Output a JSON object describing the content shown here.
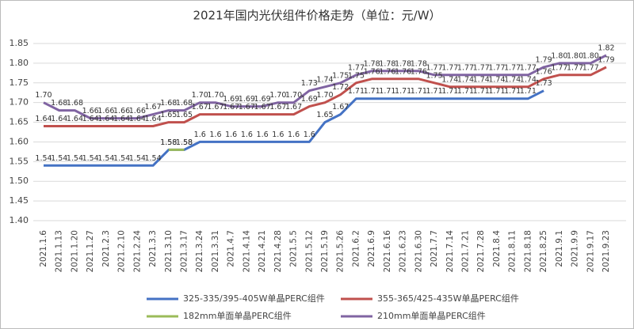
{
  "chart_data": {
    "type": "line",
    "title": "2021年国内光伏组件价格走势（单位：元/W）",
    "categories": [
      "2021.1.6",
      "2021.1.13",
      "2021.1.20",
      "2021.1.27",
      "2021.2.3",
      "2021.2.10",
      "2021.2.24",
      "2021.3.3",
      "2021.3.10",
      "2021.3.17",
      "2021.3.24",
      "2021.3.31",
      "2021.4.7",
      "2021.4.14",
      "2021.4.21",
      "2021.4.28",
      "2021.5.5",
      "2021.5.12",
      "2021.5.19",
      "2021.5.26",
      "2021.6.2",
      "2021.6.9",
      "2021.6.16",
      "2021.6.23",
      "2021.6.30",
      "2021.7.7",
      "2021.7.14",
      "2021.7.21",
      "2021.7.28",
      "2021.8.4",
      "2021.8.11",
      "2021.8.18",
      "2021.8.25",
      "2021.9.1",
      "2021.9.9",
      "2021.9.17",
      "2021.9.23"
    ],
    "series": [
      {
        "name": "325-335/395-405W单晶PERC组件",
        "color": "#4472c4",
        "values": [
          1.54,
          1.54,
          1.54,
          1.54,
          1.54,
          1.54,
          1.54,
          1.54,
          1.58,
          1.58,
          1.6,
          1.6,
          1.6,
          1.6,
          1.6,
          1.6,
          1.6,
          1.6,
          1.65,
          1.67,
          1.71,
          1.71,
          1.71,
          1.71,
          1.71,
          1.71,
          1.71,
          1.71,
          1.71,
          1.71,
          1.71,
          1.71,
          1.73,
          null,
          null,
          null,
          null
        ],
        "value_labels": [
          "1.54",
          "1.54",
          "1.54",
          "1.54",
          "1.54",
          "1.54",
          "1.54",
          "1.54",
          "1.58",
          "1.58",
          "1.6",
          "1.6",
          "1.6",
          "1.6",
          "1.6",
          "1.6",
          "1.6",
          "1.6",
          "1.65",
          "1.67",
          "1.71",
          "1.71",
          "1.71",
          "1.71",
          "1.71",
          "1.71",
          "1.71",
          "1.71",
          "1.71",
          "1.71",
          "1.71",
          "1.71",
          "1.73",
          null,
          null,
          null,
          null
        ]
      },
      {
        "name": "355-365/425-435W单晶PERC组件",
        "color": "#c0504d",
        "values": [
          1.64,
          1.64,
          1.64,
          1.64,
          1.64,
          1.64,
          1.64,
          1.64,
          1.65,
          1.65,
          1.67,
          1.67,
          1.67,
          1.67,
          1.67,
          1.67,
          1.67,
          1.69,
          1.7,
          1.72,
          1.75,
          1.76,
          1.76,
          1.76,
          1.76,
          1.75,
          1.74,
          1.74,
          1.74,
          1.74,
          1.74,
          1.74,
          1.76,
          1.77,
          1.77,
          1.77,
          1.79
        ],
        "value_labels": [
          "1.64",
          "1.64",
          "1.64",
          "1.64",
          "1.64",
          "1.64",
          "1.64",
          "1.64",
          "1.65",
          "1.65",
          "1.67",
          "1.67",
          "1.67",
          "1.67",
          "1.67",
          "1.67",
          "1.67",
          "1.69",
          "1.70",
          "1.72",
          "1.75",
          "1.76",
          "1.76",
          "1.76",
          "1.76",
          "1.75",
          "1.74",
          "1.74",
          "1.74",
          "1.74",
          "1.74",
          "1.74",
          "1.76",
          "1.77",
          "1.77",
          "1.77",
          "1.79"
        ]
      },
      {
        "name": "182mm单面单晶PERC组件",
        "color": "#9bbb59",
        "values": [
          null,
          null,
          null,
          null,
          null,
          null,
          null,
          null,
          1.58,
          1.58,
          null,
          null,
          null,
          null,
          null,
          null,
          null,
          null,
          null,
          null,
          null,
          null,
          null,
          null,
          null,
          null,
          null,
          null,
          null,
          null,
          null,
          null,
          null,
          null,
          null,
          null,
          null
        ],
        "value_labels": [
          null,
          null,
          null,
          null,
          null,
          null,
          null,
          null,
          "1.58",
          "1.58",
          null,
          null,
          null,
          null,
          null,
          null,
          null,
          null,
          null,
          null,
          null,
          null,
          null,
          null,
          null,
          null,
          null,
          null,
          null,
          null,
          null,
          null,
          null,
          null,
          null,
          null,
          null
        ]
      },
      {
        "name": "210mm单面单晶PERC组件",
        "color": "#8064a2",
        "values": [
          1.7,
          1.68,
          1.68,
          1.66,
          1.66,
          1.66,
          1.66,
          1.67,
          1.68,
          1.68,
          1.7,
          1.7,
          1.69,
          1.69,
          1.69,
          1.7,
          1.7,
          1.73,
          1.74,
          1.75,
          1.77,
          1.78,
          1.78,
          1.78,
          1.78,
          1.77,
          1.77,
          1.77,
          1.77,
          1.77,
          1.77,
          1.77,
          1.79,
          1.8,
          1.8,
          1.8,
          1.82
        ],
        "value_labels": [
          "1.70",
          "1.68",
          "1.68",
          "1.66",
          "1.66",
          "1.66",
          "1.66",
          "1.67",
          "1.68",
          "1.68",
          "1.70",
          "1.70",
          "1.69",
          "1.69",
          "1.69",
          "1.70",
          "1.70",
          "1.73",
          "1.74",
          "1.75",
          "1.77",
          "1.78",
          "1.78",
          "1.78",
          "1.78",
          "1.77",
          "1.77",
          "1.77",
          "1.77",
          "1.77",
          "1.77",
          "1.77",
          "1.79",
          "1.80",
          "1.80",
          "1.80",
          "1.82"
        ]
      }
    ],
    "ylim": [
      1.4,
      1.85
    ],
    "yticks": [
      {
        "value": 1.4,
        "label": "1.40"
      },
      1.45,
      {
        "value": 1.5,
        "label": "1.50"
      },
      1.55,
      {
        "value": 1.6,
        "label": "1.60"
      },
      1.65,
      {
        "value": 1.7,
        "label": "1.70"
      },
      1.75,
      {
        "value": 1.8,
        "label": "1.80"
      },
      1.85
    ],
    "grid": true
  }
}
